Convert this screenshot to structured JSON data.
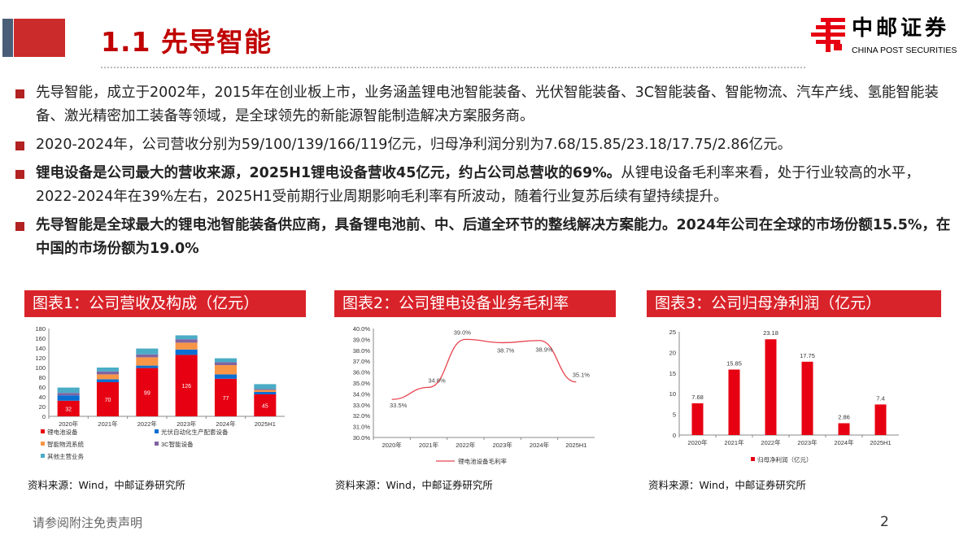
{
  "header": {
    "title": "1.1 先导智能",
    "logo_cn": "中邮证券",
    "logo_en": "CHINA POST SECURITIES"
  },
  "bullets": [
    {
      "text": "先导智能，成立于2002年，2015年在创业板上市，业务涵盖锂电池智能装备、光伏智能装备、3C智能装备、智能物流、汽车产线、氢能智能装备、激光精密加工装备等领域，是全球领先的新能源智能制造解决方案服务商。",
      "bold": false
    },
    {
      "text": "2020-2024年，公司营收分别为59/100/139/166/119亿元，归母净利润分别为7.68/15.85/23.18/17.75/2.86亿元。",
      "bold": false
    },
    {
      "bold_part": "锂电设备是公司最大的营收来源，2025H1锂电设备营收45亿元，约占公司总营收的69%。",
      "text": "从锂电设备毛利率来看，处于行业较高的水平，2022-2024年在39%左右，2025H1受前期行业周期影响毛利率有所波动，随着行业复苏后续有望持续提升。",
      "bold": false
    },
    {
      "text": "先导智能是全球最大的锂电池智能装备供应商，具备锂电池前、中、后道全环节的整线解决方案能力。2024年公司在全球的市场份额15.5%，在中国的市场份额为19.0%",
      "bold": true
    }
  ],
  "panels": [
    {
      "title": "图表1：公司营收及构成（亿元）",
      "source": "资料来源：Wind，中邮证券研究所"
    },
    {
      "title": "图表2：公司锂电设备业务毛利率",
      "source": "资料来源：Wind，中邮证券研究所"
    },
    {
      "title": "图表3：公司归母净利润（亿元）",
      "source": "资料来源：Wind，中邮证券研究所"
    }
  ],
  "footer": {
    "disclaimer": "请参阅附注免责声明",
    "page": "2"
  },
  "chart_data": [
    {
      "type": "bar",
      "stacked": true,
      "categories": [
        "2020年",
        "2021年",
        "2022年",
        "2023年",
        "2024年",
        "2025H1"
      ],
      "ylim": [
        0,
        180
      ],
      "yticks": [
        0,
        20,
        40,
        60,
        80,
        100,
        120,
        140,
        160,
        180
      ],
      "series": [
        {
          "name": "锂电池设备",
          "color": "#e60012",
          "values": [
            32,
            70,
            99,
            126,
            77,
            45
          ],
          "labels": true
        },
        {
          "name": "光伏自动化生产配套设备",
          "color": "#0b6fd1",
          "values": [
            11,
            6,
            5,
            11,
            9,
            5
          ]
        },
        {
          "name": "智能物流系统",
          "color": "#f79646",
          "values": [
            0,
            10,
            17,
            14,
            19,
            4
          ]
        },
        {
          "name": "3C智能设备",
          "color": "#8064a2",
          "values": [
            5,
            6,
            6,
            7,
            6,
            2
          ]
        },
        {
          "name": "其他主营业务",
          "color": "#4bacc6",
          "values": [
            11,
            8,
            12,
            8,
            8,
            10
          ]
        }
      ],
      "legend": "bottom"
    },
    {
      "type": "line",
      "categories": [
        "2020年",
        "2021年",
        "2022年",
        "2023年",
        "2024年",
        "2025H1"
      ],
      "ylim": [
        30,
        40
      ],
      "yticks": [
        "30.0%",
        "31.0%",
        "32.0%",
        "33.0%",
        "34.0%",
        "35.0%",
        "36.0%",
        "37.0%",
        "38.0%",
        "39.0%",
        "40.0%"
      ],
      "series": [
        {
          "name": "锂电池设备毛利率",
          "color": "#e8434f",
          "values": [
            33.5,
            34.6,
            39.0,
            38.7,
            38.9,
            35.1
          ],
          "labels": [
            "33.5%",
            "34.6%",
            "39.0%",
            "38.7%",
            "38.9%",
            "35.1%"
          ]
        }
      ],
      "legend": "bottom"
    },
    {
      "type": "bar",
      "categories": [
        "2020年",
        "2021年",
        "2022年",
        "2023年",
        "2024年",
        "2025H1"
      ],
      "ylim": [
        0,
        25
      ],
      "yticks": [
        0,
        5,
        10,
        15,
        20,
        25
      ],
      "series": [
        {
          "name": "归母净利润（亿元）",
          "color": "#e60012",
          "values": [
            7.68,
            15.85,
            23.18,
            17.75,
            2.86,
            7.4
          ],
          "labels": [
            "7.68",
            "15.85",
            "23.18",
            "17.75",
            "2.86",
            "7.4"
          ]
        }
      ],
      "legend": "bottom"
    }
  ]
}
